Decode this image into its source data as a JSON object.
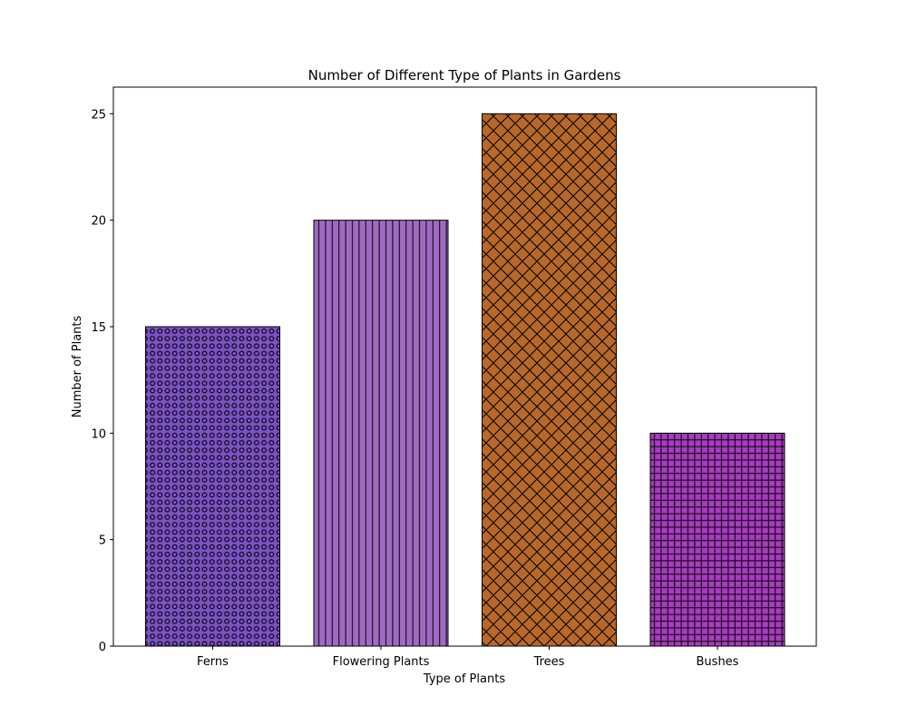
{
  "chart_data": {
    "type": "bar",
    "title": "Number of Different Type of Plants in Gardens",
    "xlabel": "Type of Plants",
    "ylabel": "Number of Plants",
    "categories": [
      "Ferns",
      "Flowering Plants",
      "Trees",
      "Bushes"
    ],
    "values": [
      15,
      20,
      25,
      10
    ],
    "ylim": [
      0,
      26.25
    ],
    "yticks": [
      0,
      5,
      10,
      15,
      20,
      25
    ],
    "grid": false,
    "legend": "none",
    "colors": [
      "#7b52c4",
      "#a06ac2",
      "#b8682a",
      "#a83cc0"
    ],
    "hatches": [
      "circles",
      "vertical-lines",
      "crosshatch-diagonal",
      "grid"
    ]
  }
}
